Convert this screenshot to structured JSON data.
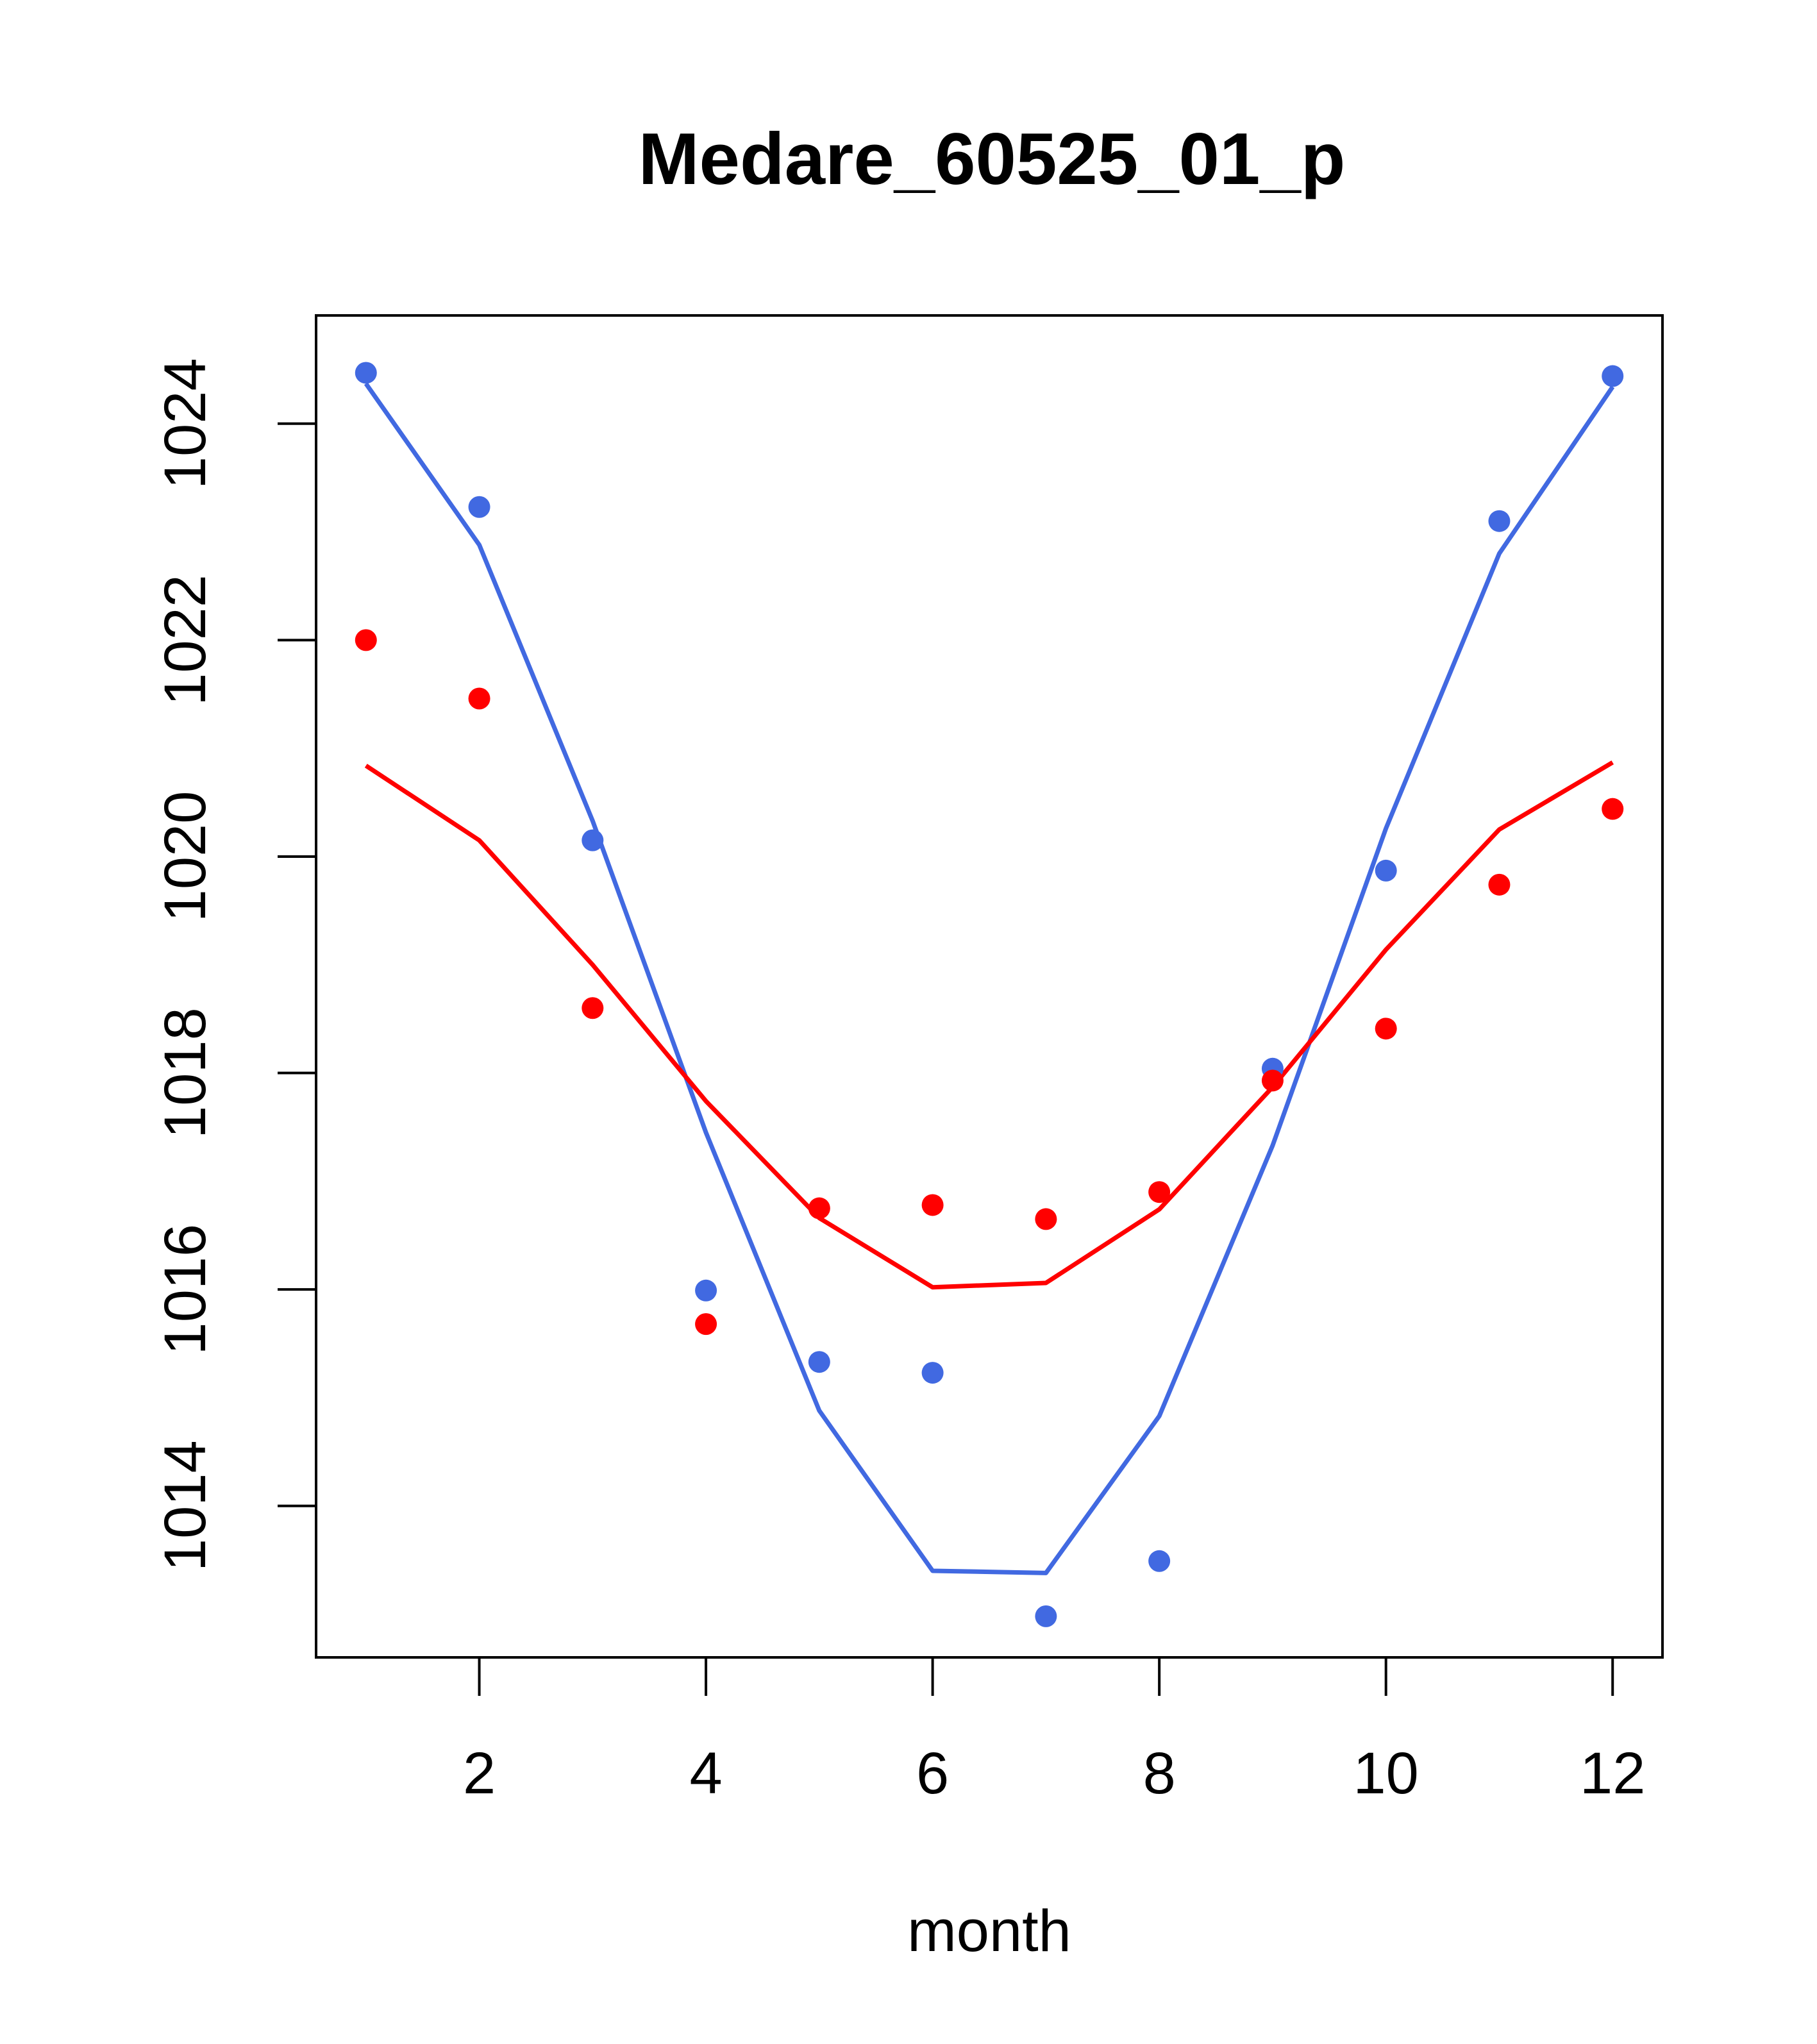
{
  "chart_data": {
    "type": "scatter",
    "title": "Medare_60525_01_p",
    "xlabel": "month",
    "ylabel": "",
    "xlim": [
      0.56,
      12.44
    ],
    "ylim": [
      12.6,
      25.0
    ],
    "y_offset": 1000,
    "x_ticks": [
      2,
      4,
      6,
      8,
      10,
      12
    ],
    "x_tick_labels": [
      "2",
      "4",
      "6",
      "8",
      "10",
      "12"
    ],
    "y_ticks": [
      1014,
      1016,
      1018,
      1020,
      1022,
      1024
    ],
    "y_tick_labels": [
      "1014",
      "1016",
      "1018",
      "1020",
      "1022",
      "1024"
    ],
    "grid": false,
    "legend": "none",
    "x": [
      1,
      2,
      3,
      4,
      5,
      6,
      7,
      8,
      9,
      10,
      11,
      12
    ],
    "series": [
      {
        "color": "#4169E1",
        "points": [
          1024.47,
          1023.23,
          1020.15,
          1015.99,
          1015.33,
          1015.23,
          1012.98,
          1013.49,
          1018.04,
          1019.87,
          1023.1,
          1024.44
        ],
        "line": [
          1024.37,
          1022.88,
          1020.33,
          1017.45,
          1014.88,
          1013.4,
          1013.38,
          1014.83,
          1017.33,
          1020.26,
          1022.8,
          1024.34
        ]
      },
      {
        "color": "#FF0000",
        "points": [
          1022.0,
          1021.46,
          1018.6,
          1015.68,
          1016.75,
          1016.78,
          1016.65,
          1016.9,
          1017.93,
          1018.41,
          1019.74,
          1020.44
        ],
        "line": [
          1020.84,
          1020.15,
          1019.0,
          1017.74,
          1016.66,
          1016.02,
          1016.06,
          1016.74,
          1017.87,
          1019.14,
          1020.25,
          1020.87
        ]
      }
    ]
  }
}
